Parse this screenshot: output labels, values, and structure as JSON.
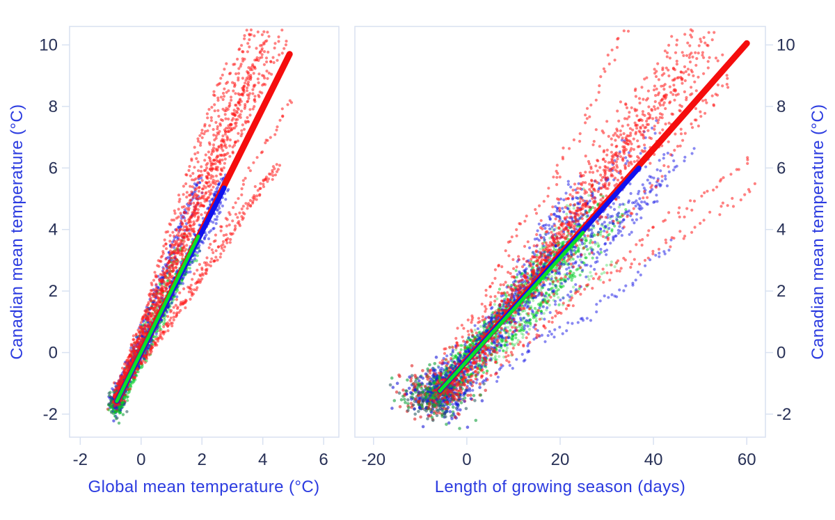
{
  "seed": 12345,
  "theme": {
    "background": "#ffffff",
    "axis_title_color": "#2b3be0",
    "tick_label_color": "#273056",
    "axis_line_color": "#d8e1f1",
    "series_colors": {
      "red": "#ff1a1a",
      "blue": "#1414e6",
      "green": "#00cc22"
    }
  },
  "chart_data": [
    {
      "type": "scatter",
      "panel": "left",
      "xlabel": "Global mean temperature (°C)",
      "ylabel": "Canadian mean temperature (°C)",
      "y_axis_side": "left",
      "grid": false,
      "legend": "none",
      "xlim": [
        -2.35,
        6.5
      ],
      "ylim": [
        -2.75,
        10.6
      ],
      "xticks": [
        -2,
        0,
        2,
        4,
        6
      ],
      "yticks": [
        -2,
        0,
        2,
        4,
        6,
        8,
        10
      ],
      "trend_lines": [
        {
          "series": "red",
          "color": "#f50d0d",
          "width": 9,
          "from": [
            -0.8,
            -1.58
          ],
          "to": [
            4.88,
            9.7
          ]
        },
        {
          "series": "blue",
          "color": "#1111ee",
          "width": 7,
          "from": [
            -0.8,
            -1.58
          ],
          "to": [
            2.73,
            5.35
          ]
        },
        {
          "series": "green",
          "color": "#0ae028",
          "width": 5,
          "from": [
            -0.8,
            -1.58
          ],
          "to": [
            1.88,
            3.78
          ]
        }
      ],
      "scatter_clouds": [
        {
          "name": "dense-origin-cluster",
          "type": "blob",
          "n": 230,
          "center": [
            -0.78,
            -1.62
          ],
          "sigma": [
            0.12,
            0.2
          ],
          "colors": [
            "#e02020",
            "#1a1ad8",
            "#12a03c",
            "#2e5f66"
          ],
          "r": 2.2,
          "op": 0.6
        },
        {
          "name": "green-trajectories",
          "type": "strands",
          "n": 13,
          "pts": 68,
          "start": [
            -0.88,
            -1.68
          ],
          "sj": [
            0.07,
            0.16
          ],
          "ex": [
            1.15,
            2.05
          ],
          "slope": [
            2.3,
            1.78
          ],
          "sjit": 0.07,
          "wig": [
            0.009,
            0.026
          ],
          "jit": [
            0.03,
            0.06
          ],
          "colors": [
            "#00cc22"
          ],
          "r": 2.1,
          "op": 0.5
        },
        {
          "name": "blue-trajectories",
          "type": "strands",
          "n": 12,
          "pts": 72,
          "start": [
            -0.86,
            -1.62
          ],
          "sj": [
            0.07,
            0.16
          ],
          "ex": [
            1.9,
            3.0
          ],
          "slope": [
            2.45,
            1.8
          ],
          "sjit": 0.07,
          "wig": [
            0.01,
            0.028
          ],
          "jit": [
            0.032,
            0.065
          ],
          "colors": [
            "#1414e6"
          ],
          "r": 2.1,
          "op": 0.5
        },
        {
          "name": "red-trajectories",
          "type": "strands",
          "n": 15,
          "pts": 82,
          "start": [
            -0.82,
            -1.55
          ],
          "sj": [
            0.06,
            0.14
          ],
          "ex": [
            2.6,
            5.15
          ],
          "slope": [
            3.0,
            1.85
          ],
          "sjit": 0.18,
          "wig": [
            0.011,
            0.03
          ],
          "jit": [
            0.035,
            0.07
          ],
          "colors": [
            "#ff1a1a"
          ],
          "r": 2.1,
          "op": 0.55
        },
        {
          "name": "red-low-trajectories",
          "type": "strands",
          "n": 3,
          "pts": 78,
          "start": [
            -0.8,
            -1.5
          ],
          "sj": [
            0.05,
            0.1
          ],
          "ex": [
            4.3,
            5.05
          ],
          "slope": [
            1.52,
            1.38
          ],
          "sjit": 0.04,
          "wig": [
            0.011,
            0.026
          ],
          "jit": [
            0.035,
            0.07
          ],
          "colors": [
            "#ff1a1a"
          ],
          "r": 2.1,
          "op": 0.55
        }
      ]
    },
    {
      "type": "scatter",
      "panel": "right",
      "xlabel": "Length of growing season (days)",
      "ylabel": "Canadian mean temperature (°C)",
      "y_axis_side": "right",
      "grid": false,
      "legend": "none",
      "xlim": [
        -24,
        64
      ],
      "ylim": [
        -2.75,
        10.6
      ],
      "xticks": [
        -20,
        0,
        20,
        40,
        60
      ],
      "yticks": [
        -2,
        0,
        2,
        4,
        6,
        8,
        10
      ],
      "trend_lines": [
        {
          "series": "red",
          "color": "#f50d0d",
          "width": 9,
          "from": [
            -5.8,
            -1.25
          ],
          "to": [
            60,
            10.05
          ]
        },
        {
          "series": "blue",
          "color": "#1111ee",
          "width": 7,
          "from": [
            -5.8,
            -1.25
          ],
          "to": [
            36.9,
            6.0
          ]
        },
        {
          "series": "green",
          "color": "#0ae028",
          "width": 5,
          "from": [
            -5.8,
            -1.25
          ],
          "to": [
            24.9,
            3.9
          ]
        }
      ],
      "scatter_clouds": [
        {
          "name": "dense-origin-cluster",
          "type": "blob",
          "n": 560,
          "center": [
            -6.8,
            -1.38
          ],
          "sigma": [
            3.6,
            0.4
          ],
          "colors": [
            "#e02020",
            "#1a1ad8",
            "#12a03c",
            "#2e5f66"
          ],
          "r": 2.3,
          "op": 0.6
        },
        {
          "name": "green-trajectories",
          "type": "strands",
          "n": 11,
          "pts": 80,
          "start": [
            -6,
            -1.35
          ],
          "sj": [
            1.8,
            0.26
          ],
          "ex": [
            13,
            36
          ],
          "slope": [
            0.2,
            0.124
          ],
          "sjit": 0.014,
          "wig": [
            0.2,
            0.05
          ],
          "jit": [
            0.45,
            0.09
          ],
          "colors": [
            "#00cc22"
          ],
          "r": 2.1,
          "op": 0.5
        },
        {
          "name": "green-light-trajectories",
          "type": "strands",
          "n": 6,
          "pts": 75,
          "start": [
            -5,
            -1.2
          ],
          "sj": [
            1.8,
            0.26
          ],
          "ex": [
            20,
            37
          ],
          "slope": [
            0.185,
            0.13
          ],
          "sjit": 0.012,
          "wig": [
            0.22,
            0.05
          ],
          "jit": [
            0.5,
            0.1
          ],
          "colors": [
            "#00cc22"
          ],
          "r": 2.1,
          "op": 0.3
        },
        {
          "name": "blue-trajectories",
          "type": "strands",
          "n": 15,
          "pts": 80,
          "start": [
            -6,
            -1.3
          ],
          "sj": [
            1.8,
            0.26
          ],
          "ex": [
            24,
            48
          ],
          "slope": [
            0.225,
            0.118
          ],
          "sjit": 0.015,
          "wig": [
            0.22,
            0.055
          ],
          "jit": [
            0.5,
            0.1
          ],
          "colors": [
            "#1414e6"
          ],
          "r": 2.1,
          "op": 0.5
        },
        {
          "name": "red-trajectories",
          "type": "strands",
          "n": 16,
          "pts": 85,
          "start": [
            -5.6,
            -1.25
          ],
          "sj": [
            1.7,
            0.24
          ],
          "ex": [
            36,
            62
          ],
          "slope": [
            0.26,
            0.14
          ],
          "sjit": 0.018,
          "wig": [
            0.24,
            0.06
          ],
          "jit": [
            0.55,
            0.11
          ],
          "colors": [
            "#ff1a1a"
          ],
          "r": 2.1,
          "op": 0.55
        },
        {
          "name": "red-low-trajectories",
          "type": "strands",
          "n": 2,
          "pts": 80,
          "start": [
            -5,
            -1.2
          ],
          "sj": [
            1.2,
            0.2
          ],
          "ex": [
            58,
            63
          ],
          "slope": [
            0.125,
            0.118
          ],
          "sjit": 0.008,
          "wig": [
            0.22,
            0.055
          ],
          "jit": [
            0.5,
            0.1
          ],
          "colors": [
            "#ff1a1a"
          ],
          "r": 2.1,
          "op": 0.55
        }
      ]
    }
  ]
}
